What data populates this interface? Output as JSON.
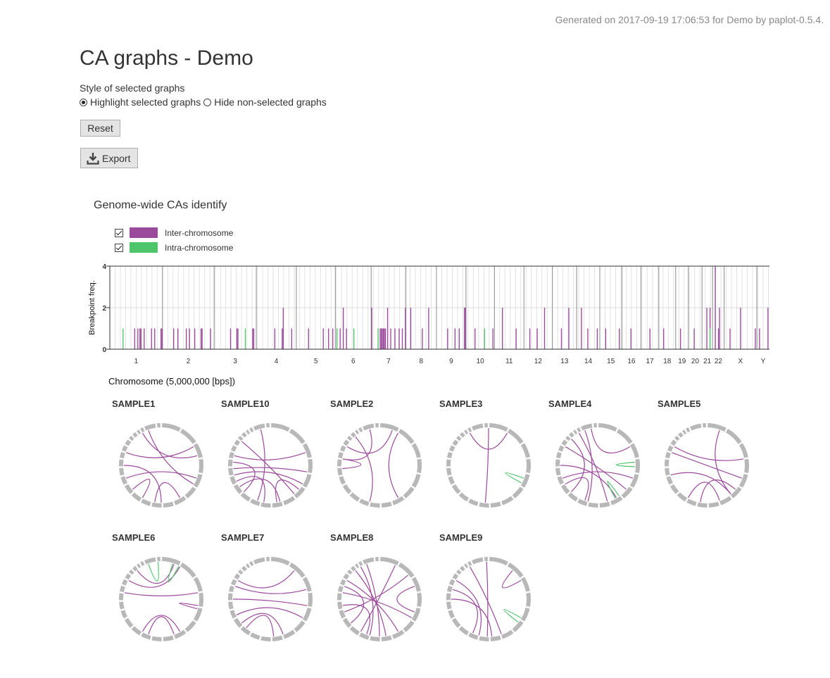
{
  "header": {
    "generated": "Generated on 2017-09-19 17:06:53 for Demo by paplot-0.5.4."
  },
  "page_title": "CA graphs - Demo",
  "style_control": {
    "label": "Style of selected graphs",
    "options": [
      {
        "label": "Highlight selected graphs",
        "selected": true
      },
      {
        "label": "Hide non-selected graphs",
        "selected": false
      }
    ]
  },
  "buttons": {
    "reset": "Reset",
    "export": "Export"
  },
  "section_title": "Genome-wide CAs identify",
  "legend": [
    {
      "label": "Inter-chromosome",
      "color": "#9b4a9b",
      "checked": true
    },
    {
      "label": "Intra-chromosome",
      "color": "#4ec46b",
      "checked": true
    }
  ],
  "chart_data": {
    "type": "bar",
    "ylabel": "Breakpoint freq.",
    "xlabel": "Chromosome (5,000,000 [bps])",
    "ylim": [
      0,
      4
    ],
    "yticks": [
      0,
      2,
      4
    ],
    "colors": {
      "inter": "#9b4a9b",
      "intra": "#4ec46b"
    },
    "chromosomes": [
      {
        "name": "1",
        "start": 0,
        "end": 50
      },
      {
        "name": "2",
        "start": 50,
        "end": 99
      },
      {
        "name": "3",
        "start": 99,
        "end": 139
      },
      {
        "name": "4",
        "start": 139,
        "end": 177
      },
      {
        "name": "5",
        "start": 177,
        "end": 214
      },
      {
        "name": "6",
        "start": 214,
        "end": 248
      },
      {
        "name": "7",
        "start": 248,
        "end": 281
      },
      {
        "name": "8",
        "start": 281,
        "end": 310
      },
      {
        "name": "9",
        "start": 310,
        "end": 338
      },
      {
        "name": "10",
        "start": 338,
        "end": 365
      },
      {
        "name": "11",
        "start": 365,
        "end": 393
      },
      {
        "name": "12",
        "start": 393,
        "end": 420
      },
      {
        "name": "13",
        "start": 420,
        "end": 443
      },
      {
        "name": "14",
        "start": 443,
        "end": 465
      },
      {
        "name": "15",
        "start": 465,
        "end": 486
      },
      {
        "name": "16",
        "start": 486,
        "end": 504
      },
      {
        "name": "17",
        "start": 504,
        "end": 521
      },
      {
        "name": "18",
        "start": 521,
        "end": 537
      },
      {
        "name": "19",
        "start": 537,
        "end": 549
      },
      {
        "name": "20",
        "start": 549,
        "end": 562
      },
      {
        "name": "21",
        "start": 562,
        "end": 572
      },
      {
        "name": "22",
        "start": 572,
        "end": 583
      },
      {
        "name": "X",
        "start": 583,
        "end": 614
      },
      {
        "name": "Y",
        "start": 614,
        "end": 626
      }
    ],
    "bins": [
      {
        "bin": 12,
        "inter": 0,
        "intra": 1
      },
      {
        "bin": 23,
        "inter": 1,
        "intra": 0
      },
      {
        "bin": 26,
        "inter": 1,
        "intra": 0
      },
      {
        "bin": 28,
        "inter": 1,
        "intra": 0
      },
      {
        "bin": 29,
        "inter": 1,
        "intra": 0
      },
      {
        "bin": 32,
        "inter": 1,
        "intra": 0
      },
      {
        "bin": 39,
        "inter": 1,
        "intra": 0
      },
      {
        "bin": 42,
        "inter": 1,
        "intra": 0
      },
      {
        "bin": 48,
        "inter": 1,
        "intra": 0
      },
      {
        "bin": 49,
        "inter": 1,
        "intra": 0
      },
      {
        "bin": 60,
        "inter": 1,
        "intra": 0
      },
      {
        "bin": 64,
        "inter": 1,
        "intra": 0
      },
      {
        "bin": 72,
        "inter": 1,
        "intra": 0
      },
      {
        "bin": 75,
        "inter": 1,
        "intra": 0
      },
      {
        "bin": 80,
        "inter": 1,
        "intra": 0
      },
      {
        "bin": 86,
        "inter": 1,
        "intra": 0
      },
      {
        "bin": 87,
        "inter": 1,
        "intra": 0
      },
      {
        "bin": 95,
        "inter": 1,
        "intra": 0
      },
      {
        "bin": 114,
        "inter": 1,
        "intra": 0
      },
      {
        "bin": 120,
        "inter": 1,
        "intra": 0
      },
      {
        "bin": 121,
        "inter": 1,
        "intra": 0
      },
      {
        "bin": 128,
        "inter": 0,
        "intra": 1
      },
      {
        "bin": 135,
        "inter": 1,
        "intra": 0
      },
      {
        "bin": 136,
        "inter": 1,
        "intra": 0
      },
      {
        "bin": 156,
        "inter": 1,
        "intra": 0
      },
      {
        "bin": 163,
        "inter": 1,
        "intra": 0
      },
      {
        "bin": 164,
        "inter": 2,
        "intra": 0
      },
      {
        "bin": 172,
        "inter": 1,
        "intra": 0
      },
      {
        "bin": 188,
        "inter": 1,
        "intra": 0
      },
      {
        "bin": 202,
        "inter": 1,
        "intra": 0
      },
      {
        "bin": 207,
        "inter": 1,
        "intra": 0
      },
      {
        "bin": 211,
        "inter": 1,
        "intra": 0
      },
      {
        "bin": 215,
        "inter": 0,
        "intra": 1
      },
      {
        "bin": 218,
        "inter": 1,
        "intra": 0
      },
      {
        "bin": 221,
        "inter": 2,
        "intra": 0
      },
      {
        "bin": 224,
        "inter": 1,
        "intra": 0
      },
      {
        "bin": 231,
        "inter": 0,
        "intra": 1
      },
      {
        "bin": 248,
        "inter": 2,
        "intra": 0
      },
      {
        "bin": 254,
        "inter": 0,
        "intra": 1
      },
      {
        "bin": 256,
        "inter": 1,
        "intra": 0
      },
      {
        "bin": 257,
        "inter": 1,
        "intra": 0
      },
      {
        "bin": 258,
        "inter": 1,
        "intra": 0
      },
      {
        "bin": 259,
        "inter": 1,
        "intra": 0
      },
      {
        "bin": 260,
        "inter": 1,
        "intra": 0
      },
      {
        "bin": 261,
        "inter": 1,
        "intra": 0
      },
      {
        "bin": 263,
        "inter": 2,
        "intra": 0
      },
      {
        "bin": 266,
        "inter": 1,
        "intra": 0
      },
      {
        "bin": 270,
        "inter": 1,
        "intra": 0
      },
      {
        "bin": 274,
        "inter": 1,
        "intra": 0
      },
      {
        "bin": 277,
        "inter": 1,
        "intra": 0
      },
      {
        "bin": 280,
        "inter": 2,
        "intra": 0
      },
      {
        "bin": 285,
        "inter": 2,
        "intra": 0
      },
      {
        "bin": 296,
        "inter": 1,
        "intra": 0
      },
      {
        "bin": 302,
        "inter": 2,
        "intra": 0
      },
      {
        "bin": 320,
        "inter": 1,
        "intra": 0
      },
      {
        "bin": 327,
        "inter": 1,
        "intra": 0
      },
      {
        "bin": 331,
        "inter": 1,
        "intra": 0
      },
      {
        "bin": 336,
        "inter": 2,
        "intra": 0
      },
      {
        "bin": 337,
        "inter": 2,
        "intra": 0
      },
      {
        "bin": 346,
        "inter": 1,
        "intra": 0
      },
      {
        "bin": 355,
        "inter": 0,
        "intra": 1
      },
      {
        "bin": 363,
        "inter": 1,
        "intra": 0
      },
      {
        "bin": 372,
        "inter": 2,
        "intra": 0
      },
      {
        "bin": 385,
        "inter": 1,
        "intra": 0
      },
      {
        "bin": 398,
        "inter": 1,
        "intra": 0
      },
      {
        "bin": 405,
        "inter": 1,
        "intra": 0
      },
      {
        "bin": 412,
        "inter": 2,
        "intra": 0
      },
      {
        "bin": 428,
        "inter": 1,
        "intra": 0
      },
      {
        "bin": 435,
        "inter": 2,
        "intra": 0
      },
      {
        "bin": 447,
        "inter": 2,
        "intra": 0
      },
      {
        "bin": 453,
        "inter": 1,
        "intra": 0
      },
      {
        "bin": 462,
        "inter": 1,
        "intra": 0
      },
      {
        "bin": 470,
        "inter": 1,
        "intra": 0
      },
      {
        "bin": 483,
        "inter": 1,
        "intra": 0
      },
      {
        "bin": 494,
        "inter": 1,
        "intra": 0
      },
      {
        "bin": 512,
        "inter": 1,
        "intra": 0
      },
      {
        "bin": 525,
        "inter": 1,
        "intra": 0
      },
      {
        "bin": 541,
        "inter": 1,
        "intra": 0
      },
      {
        "bin": 554,
        "inter": 1,
        "intra": 0
      },
      {
        "bin": 566,
        "inter": 2,
        "intra": 0
      },
      {
        "bin": 569,
        "inter": 1,
        "intra": 1
      },
      {
        "bin": 574,
        "inter": 4,
        "intra": 0
      },
      {
        "bin": 577,
        "inter": 1,
        "intra": 0
      },
      {
        "bin": 578,
        "inter": 2,
        "intra": 0
      },
      {
        "bin": 588,
        "inter": 1,
        "intra": 0
      },
      {
        "bin": 598,
        "inter": 2,
        "intra": 0
      },
      {
        "bin": 612,
        "inter": 1,
        "intra": 0
      },
      {
        "bin": 616,
        "inter": 1,
        "intra": 0
      },
      {
        "bin": 624,
        "inter": 2,
        "intra": 0
      }
    ]
  },
  "samples": [
    {
      "name": "SAMPLE1",
      "links": [
        {
          "a": 330,
          "b": 75,
          "type": "inter"
        },
        {
          "a": 340,
          "b": 120,
          "type": "inter"
        },
        {
          "a": 250,
          "b": 110,
          "type": "inter"
        },
        {
          "a": 270,
          "b": 180,
          "type": "inter"
        },
        {
          "a": 230,
          "b": 210,
          "type": "inter"
        },
        {
          "a": 150,
          "b": 190,
          "type": "inter"
        },
        {
          "a": 60,
          "b": 290,
          "type": "inter"
        }
      ]
    },
    {
      "name": "SAMPLE10",
      "links": [
        {
          "a": 345,
          "b": 200,
          "type": "inter"
        },
        {
          "a": 310,
          "b": 140,
          "type": "inter"
        },
        {
          "a": 265,
          "b": 100,
          "type": "inter"
        },
        {
          "a": 255,
          "b": 120,
          "type": "inter"
        },
        {
          "a": 245,
          "b": 190,
          "type": "inter"
        },
        {
          "a": 275,
          "b": 225,
          "type": "inter"
        },
        {
          "a": 285,
          "b": 70,
          "type": "inter"
        },
        {
          "a": 235,
          "b": 165,
          "type": "inter"
        },
        {
          "a": 170,
          "b": 130,
          "type": "inter"
        }
      ]
    },
    {
      "name": "SAMPLE2",
      "links": [
        {
          "a": 345,
          "b": 280,
          "type": "inter"
        },
        {
          "a": 320,
          "b": 195,
          "type": "inter"
        },
        {
          "a": 30,
          "b": 150,
          "type": "inter"
        },
        {
          "a": 20,
          "b": 300,
          "type": "inter"
        },
        {
          "a": 265,
          "b": 280,
          "type": "inter"
        }
      ]
    },
    {
      "name": "SAMPLE3",
      "links": [
        {
          "a": 330,
          "b": 30,
          "type": "inter"
        },
        {
          "a": 0,
          "b": 185,
          "type": "inter"
        },
        {
          "a": 110,
          "b": 118,
          "type": "intra"
        }
      ]
    },
    {
      "name": "SAMPLE4",
      "links": [
        {
          "a": 330,
          "b": 165,
          "type": "inter"
        },
        {
          "a": 340,
          "b": 195,
          "type": "inter"
        },
        {
          "a": 300,
          "b": 130,
          "type": "inter"
        },
        {
          "a": 270,
          "b": 150,
          "type": "inter"
        },
        {
          "a": 250,
          "b": 110,
          "type": "inter"
        },
        {
          "a": 350,
          "b": 60,
          "type": "inter"
        },
        {
          "a": 240,
          "b": 200,
          "type": "inter"
        },
        {
          "a": 315,
          "b": 225,
          "type": "inter"
        },
        {
          "a": 85,
          "b": 92,
          "type": "intra"
        },
        {
          "a": 145,
          "b": 152,
          "type": "intra"
        }
      ]
    },
    {
      "name": "SAMPLE5",
      "links": [
        {
          "a": 290,
          "b": 110,
          "type": "inter"
        },
        {
          "a": 300,
          "b": 80,
          "type": "inter"
        },
        {
          "a": 20,
          "b": 140,
          "type": "inter"
        },
        {
          "a": 255,
          "b": 140,
          "type": "inter"
        },
        {
          "a": 210,
          "b": 160,
          "type": "inter"
        },
        {
          "a": 190,
          "b": 130,
          "type": "inter"
        }
      ]
    },
    {
      "name": "SAMPLE6",
      "links": [
        {
          "a": 300,
          "b": 30,
          "type": "inter"
        },
        {
          "a": 320,
          "b": 20,
          "type": "inter"
        },
        {
          "a": 280,
          "b": 80,
          "type": "inter"
        },
        {
          "a": 100,
          "b": 105,
          "type": "inter"
        },
        {
          "a": 200,
          "b": 160,
          "type": "inter"
        },
        {
          "a": 210,
          "b": 150,
          "type": "inter"
        },
        {
          "a": 340,
          "b": 355,
          "type": "intra"
        },
        {
          "a": 18,
          "b": 28,
          "type": "intra"
        }
      ]
    },
    {
      "name": "SAMPLE7",
      "links": [
        {
          "a": 300,
          "b": 40,
          "type": "inter"
        },
        {
          "a": 270,
          "b": 100,
          "type": "inter"
        },
        {
          "a": 290,
          "b": 75,
          "type": "inter"
        },
        {
          "a": 245,
          "b": 120,
          "type": "inter"
        },
        {
          "a": 220,
          "b": 175,
          "type": "inter"
        },
        {
          "a": 230,
          "b": 160,
          "type": "inter"
        }
      ]
    },
    {
      "name": "SAMPLE8",
      "links": [
        {
          "a": 320,
          "b": 170,
          "type": "inter"
        },
        {
          "a": 330,
          "b": 195,
          "type": "inter"
        },
        {
          "a": 300,
          "b": 150,
          "type": "inter"
        },
        {
          "a": 280,
          "b": 120,
          "type": "inter"
        },
        {
          "a": 260,
          "b": 200,
          "type": "inter"
        },
        {
          "a": 25,
          "b": 210,
          "type": "inter"
        },
        {
          "a": 50,
          "b": 250,
          "type": "inter"
        },
        {
          "a": 290,
          "b": 230,
          "type": "inter"
        },
        {
          "a": 70,
          "b": 110,
          "type": "inter"
        },
        {
          "a": 340,
          "b": 180,
          "type": "inter"
        }
      ]
    },
    {
      "name": "SAMPLE9",
      "links": [
        {
          "a": 357,
          "b": 182,
          "type": "inter"
        },
        {
          "a": 330,
          "b": 160,
          "type": "inter"
        },
        {
          "a": 300,
          "b": 195,
          "type": "inter"
        },
        {
          "a": 285,
          "b": 205,
          "type": "inter"
        },
        {
          "a": 40,
          "b": 60,
          "type": "inter"
        },
        {
          "a": 270,
          "b": 175,
          "type": "inter"
        },
        {
          "a": 120,
          "b": 128,
          "type": "intra"
        }
      ]
    }
  ]
}
